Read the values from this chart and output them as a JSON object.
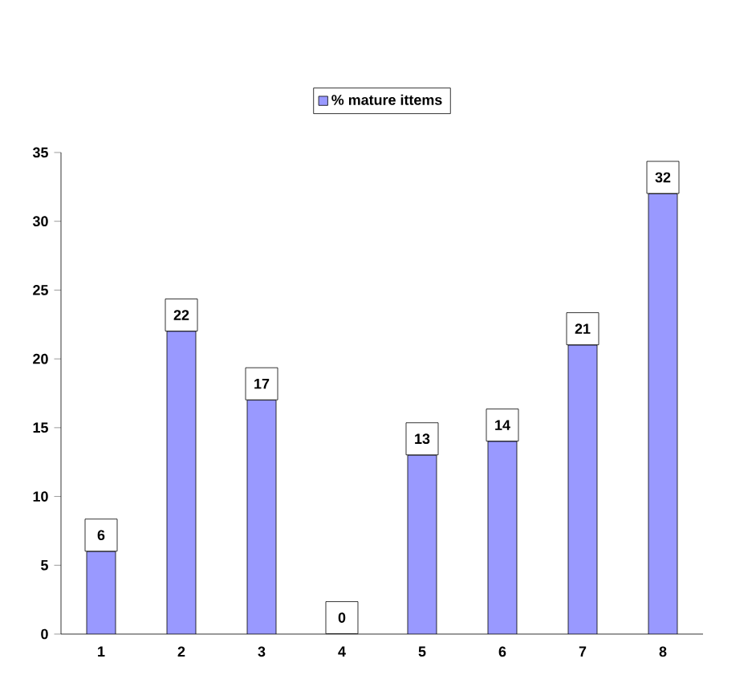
{
  "chart_data": {
    "type": "bar",
    "categories": [
      "1",
      "2",
      "3",
      "4",
      "5",
      "6",
      "7",
      "8"
    ],
    "series": [
      {
        "name": "% mature ittems",
        "color": "#9999ff",
        "values": [
          6,
          22,
          17,
          0,
          13,
          14,
          21,
          32
        ]
      }
    ],
    "ylim": [
      0,
      35
    ],
    "yticks": [
      0,
      5,
      10,
      15,
      20,
      25,
      30,
      35
    ],
    "data_labels": true,
    "legend": "top",
    "grid": false
  }
}
